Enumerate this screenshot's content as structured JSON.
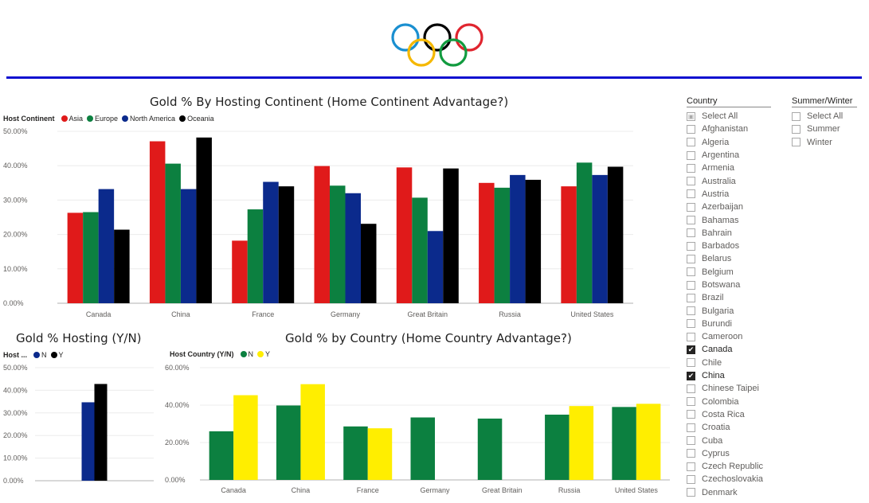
{
  "colors": {
    "asia": "#e01a1a",
    "europe": "#0c8040",
    "north_america": "#0b2a8c",
    "oceania": "#000000",
    "host_n_hosting": "#0b2a8c",
    "host_y_hosting": "#000000",
    "country_n": "#0c8040",
    "country_y": "#ffee00",
    "rule": "#1010d0"
  },
  "logo": {
    "icon": "olympic-rings-icon",
    "ring_colors": [
      "#1a8fd0",
      "#000000",
      "#e0252f",
      "#f5b800",
      "#129b3f"
    ]
  },
  "slicers": {
    "country": {
      "title": "Country",
      "items": [
        {
          "label": "Select All",
          "checked": false,
          "select_all": true
        },
        {
          "label": "Afghanistan",
          "checked": false
        },
        {
          "label": "Algeria",
          "checked": false
        },
        {
          "label": "Argentina",
          "checked": false
        },
        {
          "label": "Armenia",
          "checked": false
        },
        {
          "label": "Australia",
          "checked": false
        },
        {
          "label": "Austria",
          "checked": false
        },
        {
          "label": "Azerbaijan",
          "checked": false
        },
        {
          "label": "Bahamas",
          "checked": false
        },
        {
          "label": "Bahrain",
          "checked": false
        },
        {
          "label": "Barbados",
          "checked": false
        },
        {
          "label": "Belarus",
          "checked": false
        },
        {
          "label": "Belgium",
          "checked": false
        },
        {
          "label": "Botswana",
          "checked": false
        },
        {
          "label": "Brazil",
          "checked": false
        },
        {
          "label": "Bulgaria",
          "checked": false
        },
        {
          "label": "Burundi",
          "checked": false
        },
        {
          "label": "Cameroon",
          "checked": false
        },
        {
          "label": "Canada",
          "checked": true
        },
        {
          "label": "Chile",
          "checked": false
        },
        {
          "label": "China",
          "checked": true
        },
        {
          "label": "Chinese Taipei",
          "checked": false
        },
        {
          "label": "Colombia",
          "checked": false
        },
        {
          "label": "Costa Rica",
          "checked": false
        },
        {
          "label": "Croatia",
          "checked": false
        },
        {
          "label": "Cuba",
          "checked": false
        },
        {
          "label": "Cyprus",
          "checked": false
        },
        {
          "label": "Czech Republic",
          "checked": false
        },
        {
          "label": "Czechoslovakia",
          "checked": false
        },
        {
          "label": "Denmark",
          "checked": false
        }
      ]
    },
    "season": {
      "title": "Summer/Winter",
      "items": [
        {
          "label": "Select All",
          "checked": false
        },
        {
          "label": "Summer",
          "checked": false
        },
        {
          "label": "Winter",
          "checked": false
        }
      ]
    }
  },
  "chart_data": [
    {
      "type": "bar",
      "title": "Gold % By Hosting Continent (Home Continent Advantage?)",
      "legend_title": "Host Continent",
      "legend_placement": "top-left",
      "grid": true,
      "ylim": [
        0,
        50
      ],
      "y_ticks": [
        "0.00%",
        "10.00%",
        "20.00%",
        "30.00%",
        "40.00%",
        "50.00%"
      ],
      "categories": [
        "Canada",
        "China",
        "France",
        "Germany",
        "Great Britain",
        "Russia",
        "United States"
      ],
      "series": [
        {
          "name": "Asia",
          "color": "#e01a1a",
          "values": [
            26.3,
            47.1,
            18.2,
            39.9,
            39.5,
            35.0,
            34.0
          ]
        },
        {
          "name": "Europe",
          "color": "#0c8040",
          "values": [
            26.5,
            40.6,
            27.3,
            34.2,
            30.7,
            33.6,
            40.9
          ]
        },
        {
          "name": "North America",
          "color": "#0b2a8c",
          "values": [
            33.2,
            33.2,
            35.3,
            32.0,
            21.0,
            37.3,
            37.3
          ]
        },
        {
          "name": "Oceania",
          "color": "#000000",
          "values": [
            21.4,
            48.2,
            34.0,
            23.1,
            39.2,
            35.9,
            39.7
          ]
        }
      ]
    },
    {
      "type": "bar",
      "title": "Gold % Hosting (Y/N)",
      "legend_title": "Host ...",
      "legend_placement": "top-left",
      "grid": true,
      "ylim": [
        0,
        50
      ],
      "y_ticks": [
        "0.00%",
        "10.00%",
        "20.00%",
        "30.00%",
        "40.00%",
        "50.00%"
      ],
      "categories": [
        ""
      ],
      "series": [
        {
          "name": "N",
          "color": "#0b2a8c",
          "values": [
            34.7
          ]
        },
        {
          "name": "Y",
          "color": "#000000",
          "values": [
            42.8
          ]
        }
      ]
    },
    {
      "type": "bar",
      "title": "Gold % by Country (Home Country Advantage?)",
      "legend_title": "Host Country (Y/N)",
      "legend_placement": "top-left",
      "grid": true,
      "ylim": [
        0,
        60
      ],
      "y_ticks": [
        "0.00%",
        "20.00%",
        "40.00%",
        "60.00%"
      ],
      "categories": [
        "Canada",
        "China",
        "France",
        "Germany",
        "Great Britain",
        "Russia",
        "United States"
      ],
      "series": [
        {
          "name": "N",
          "color": "#0c8040",
          "values": [
            26.0,
            39.8,
            28.6,
            33.4,
            32.8,
            34.9,
            39.0
          ]
        },
        {
          "name": "Y",
          "color": "#ffee00",
          "values": [
            45.3,
            51.2,
            27.6,
            null,
            null,
            39.5,
            40.7
          ]
        }
      ]
    }
  ]
}
